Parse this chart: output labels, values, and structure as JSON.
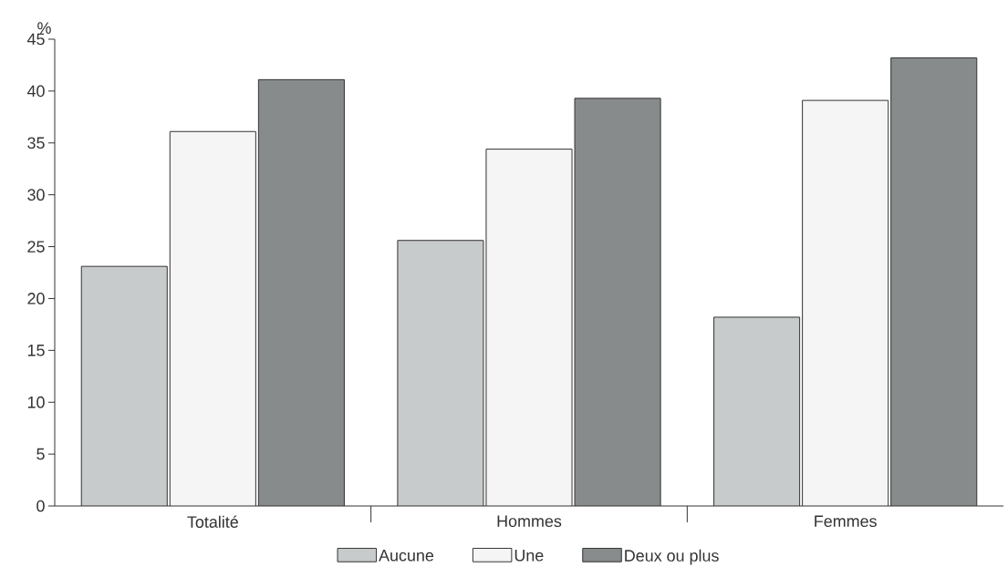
{
  "chart_data": {
    "type": "bar",
    "ylabel": "%",
    "categories": [
      "Totalité",
      "Hommes",
      "Femmes"
    ],
    "series": [
      {
        "name": "Aucune",
        "color": "#c8cbcb",
        "values": [
          23.1,
          25.6,
          18.2
        ]
      },
      {
        "name": "Une",
        "color": "#f5f5f5",
        "values": [
          36.1,
          34.4,
          39.1
        ]
      },
      {
        "name": "Deux ou plus",
        "color": "#878b8b",
        "values": [
          41.1,
          39.3,
          43.2
        ]
      }
    ],
    "ylim": [
      0,
      45
    ],
    "yticks": [
      0,
      5,
      10,
      15,
      20,
      25,
      30,
      35,
      40,
      45
    ],
    "legend": "bottom"
  }
}
